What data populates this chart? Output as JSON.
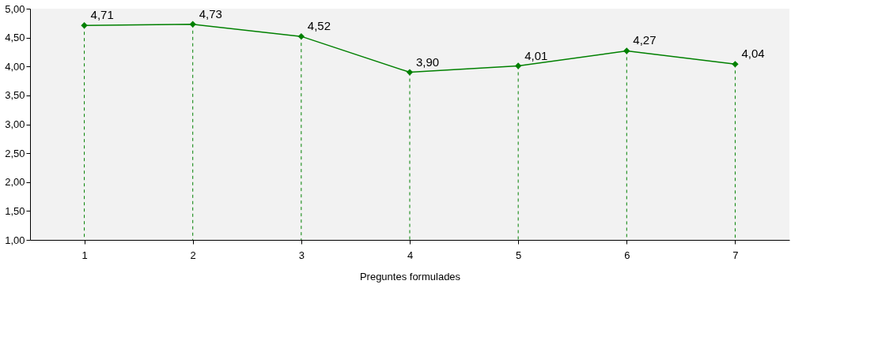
{
  "chart_data": {
    "type": "line",
    "xlabel": "Preguntes formulades",
    "categories": [
      "1",
      "2",
      "3",
      "4",
      "5",
      "6",
      "7"
    ],
    "series": [
      {
        "color": "#008000",
        "values": [
          4.71,
          4.73,
          4.52,
          3.9,
          4.01,
          4.27,
          4.04
        ],
        "value_labels": [
          "4,71",
          "4,73",
          "4,52",
          "3,90",
          "4,01",
          "4,27",
          "4,04"
        ]
      }
    ],
    "ylim": [
      1.0,
      5.0
    ],
    "yticks": [
      {
        "value": 1.0,
        "label": "1,00"
      },
      {
        "value": 1.5,
        "label": "1,50"
      },
      {
        "value": 2.0,
        "label": "2,00"
      },
      {
        "value": 2.5,
        "label": "2,50"
      },
      {
        "value": 3.0,
        "label": "3,00"
      },
      {
        "value": 3.5,
        "label": "3,50"
      },
      {
        "value": 4.0,
        "label": "4,00"
      },
      {
        "value": 4.5,
        "label": "4,50"
      },
      {
        "value": 5.0,
        "label": "5,00"
      }
    ],
    "marker": "diamond",
    "line_style": "solid",
    "grid": false,
    "ref_lines": [
      {
        "axis": "x",
        "value": "1",
        "color": "#008000",
        "line_style": "dashed"
      },
      {
        "axis": "x",
        "value": "2",
        "color": "#008000",
        "line_style": "dashed"
      },
      {
        "axis": "x",
        "value": "3",
        "color": "#008000",
        "line_style": "dashed"
      },
      {
        "axis": "x",
        "value": "4",
        "color": "#008000",
        "line_style": "dashed"
      },
      {
        "axis": "x",
        "value": "5",
        "color": "#008000",
        "line_style": "dashed"
      },
      {
        "axis": "x",
        "value": "6",
        "color": "#008000",
        "line_style": "dashed"
      },
      {
        "axis": "x",
        "value": "7",
        "color": "#008000",
        "line_style": "dashed"
      }
    ]
  }
}
